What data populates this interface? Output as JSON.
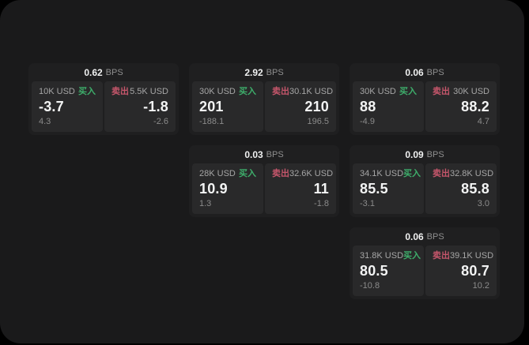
{
  "app": {
    "panel_bg": "#1a1a1b",
    "card_bg": "#1f1f20",
    "side_bg": "#29292a",
    "buy_color": "#3eae6b",
    "sell_color": "#c5566b"
  },
  "labels": {
    "buy_label": "买入",
    "sell_label": "卖出",
    "bps_unit": "BPS"
  },
  "cards": [
    {
      "row": 1,
      "col": 1,
      "bps": "0.62",
      "buy_amount": "10K USD",
      "buy_price": "-3.7",
      "buy_delta": "4.3",
      "sell_amount": "5.5K USD",
      "sell_price": "-1.8",
      "sell_delta": "-2.6"
    },
    {
      "row": 1,
      "col": 2,
      "bps": "2.92",
      "buy_amount": "30K USD",
      "buy_price": "201",
      "buy_delta": "-188.1",
      "sell_amount": "30.1K USD",
      "sell_price": "210",
      "sell_delta": "196.5"
    },
    {
      "row": 1,
      "col": 3,
      "bps": "0.06",
      "buy_amount": "30K USD",
      "buy_price": "88",
      "buy_delta": "-4.9",
      "sell_amount": "30K USD",
      "sell_price": "88.2",
      "sell_delta": "4.7"
    },
    {
      "row": 2,
      "col": 2,
      "bps": "0.03",
      "buy_amount": "28K USD",
      "buy_price": "10.9",
      "buy_delta": "1.3",
      "sell_amount": "32.6K USD",
      "sell_price": "11",
      "sell_delta": "-1.8"
    },
    {
      "row": 2,
      "col": 3,
      "bps": "0.09",
      "buy_amount": "34.1K USD",
      "buy_price": "85.5",
      "buy_delta": "-3.1",
      "sell_amount": "32.8K USD",
      "sell_price": "85.8",
      "sell_delta": "3.0"
    },
    {
      "row": 3,
      "col": 3,
      "bps": "0.06",
      "buy_amount": "31.8K USD",
      "buy_price": "80.5",
      "buy_delta": "-10.8",
      "sell_amount": "39.1K USD",
      "sell_price": "80.7",
      "sell_delta": "10.2"
    }
  ]
}
